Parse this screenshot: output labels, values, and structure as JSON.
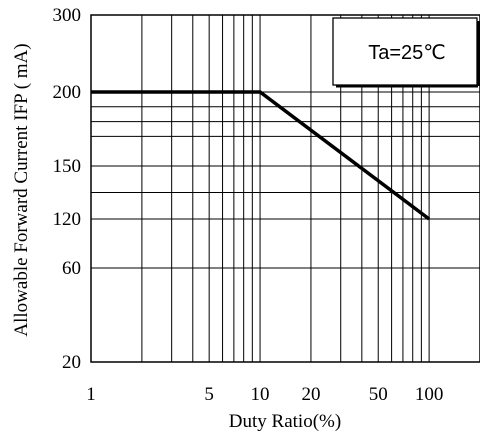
{
  "chart_data": {
    "type": "line",
    "xlabel": "Duty Ratio(%)",
    "ylabel": "Allowable Forward Current IFP ( mA)",
    "x_scale": "log",
    "xlim": [
      1,
      200
    ],
    "x_ticks": [
      1,
      5,
      10,
      20,
      50,
      100
    ],
    "y_ticks": [
      20,
      60,
      120,
      150,
      200,
      300
    ],
    "grid": true,
    "annotation": "Ta=25℃",
    "series": [
      {
        "x": [
          1,
          10,
          100
        ],
        "y": [
          200,
          200,
          120
        ]
      }
    ]
  }
}
